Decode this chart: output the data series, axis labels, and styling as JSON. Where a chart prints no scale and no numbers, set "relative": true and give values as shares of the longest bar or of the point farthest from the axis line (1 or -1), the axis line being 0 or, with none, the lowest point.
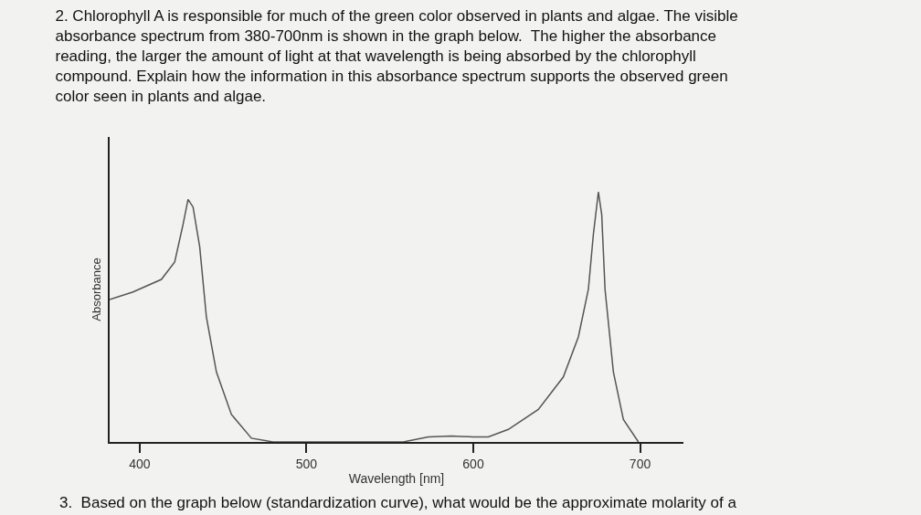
{
  "chart_data": {
    "type": "line",
    "relative": true,
    "title": "2. Chlorophyll A is responsible for much of the green color observed in plants and algae. The visible\nabsorbance spectrum from 380-700nm is shown in the graph below.  The higher the absorbance\nreading, the larger the amount of light at that wavelength is being absorbed by the chlorophyll\ncompound. Explain how the information in this absorbance spectrum supports the observed green\ncolor seen in plants and algae.",
    "xlabel": "Wavelength [nm]",
    "ylabel": "Absorbance",
    "annotations": [
      "3.  Based on the graph below (standardization curve), what would be the approximate molarity of a"
    ],
    "xlim": [
      382,
      726
    ],
    "xticks": [
      400,
      500,
      600,
      700
    ],
    "grid": false,
    "marker": "none",
    "line_style": "solid",
    "x": [
      382,
      396,
      413,
      421,
      426,
      429,
      432,
      436,
      440,
      446,
      455,
      467,
      480,
      558,
      573,
      587,
      600,
      609,
      621,
      639,
      654,
      663,
      669,
      672,
      675,
      677,
      679,
      684,
      690,
      699
    ],
    "series": [
      {
        "color": "#555555",
        "values": [
          0.57,
          0.6,
          0.65,
          0.72,
          0.87,
          0.97,
          0.94,
          0.78,
          0.5,
          0.28,
          0.11,
          0.015,
          0,
          0,
          0.02,
          0.024,
          0.02,
          0.02,
          0.05,
          0.13,
          0.26,
          0.42,
          0.61,
          0.83,
          1,
          0.91,
          0.61,
          0.28,
          0.09,
          0
        ]
      }
    ]
  }
}
